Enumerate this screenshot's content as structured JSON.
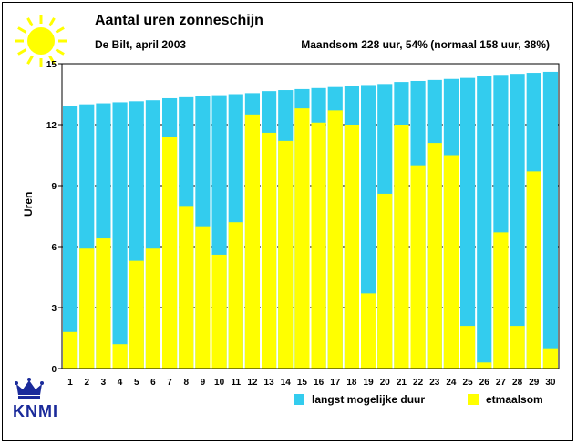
{
  "header": {
    "title": "Aantal uren zonneschijn",
    "subtitle": "De Bilt, april 2003",
    "summary": "Maandsom 228 uur, 54% (normaal 158 uur, 38%)"
  },
  "logo": {
    "text": "KNMI",
    "icon": "crown-icon"
  },
  "sun_icon": "sun-icon",
  "colors": {
    "possible": "#33ccee",
    "actual": "#ffff00",
    "grid": "#000000"
  },
  "chart_data": {
    "type": "bar",
    "title": "Aantal uren zonneschijn",
    "xlabel": "",
    "ylabel": "Uren",
    "ylim": [
      0,
      15
    ],
    "yticks": [
      0,
      3,
      6,
      9,
      12,
      15
    ],
    "grid": "horizontal dotted",
    "legend_position": "bottom",
    "categories": [
      "1",
      "2",
      "3",
      "4",
      "5",
      "6",
      "7",
      "8",
      "9",
      "10",
      "11",
      "12",
      "13",
      "14",
      "15",
      "16",
      "17",
      "18",
      "19",
      "20",
      "21",
      "22",
      "23",
      "24",
      "25",
      "26",
      "27",
      "28",
      "29",
      "30"
    ],
    "series": [
      {
        "name": "langst mogelijke duur",
        "values": [
          12.9,
          13.0,
          13.05,
          13.1,
          13.15,
          13.2,
          13.3,
          13.35,
          13.4,
          13.45,
          13.5,
          13.55,
          13.65,
          13.7,
          13.75,
          13.8,
          13.85,
          13.9,
          13.95,
          14.0,
          14.1,
          14.15,
          14.2,
          14.25,
          14.3,
          14.4,
          14.45,
          14.5,
          14.55,
          14.6
        ]
      },
      {
        "name": "etmaalsom",
        "values": [
          1.8,
          5.9,
          6.4,
          1.2,
          5.3,
          5.9,
          11.4,
          8.0,
          7.0,
          5.6,
          7.2,
          12.5,
          11.6,
          11.2,
          12.8,
          12.1,
          12.7,
          12.0,
          3.7,
          8.6,
          12.0,
          10.0,
          11.1,
          10.5,
          2.1,
          0.3,
          6.7,
          2.1,
          9.7,
          1.0
        ]
      }
    ]
  },
  "legend": [
    {
      "label": "langst mogelijke duur",
      "color": "#33ccee"
    },
    {
      "label": "etmaalsom",
      "color": "#ffff00"
    }
  ]
}
